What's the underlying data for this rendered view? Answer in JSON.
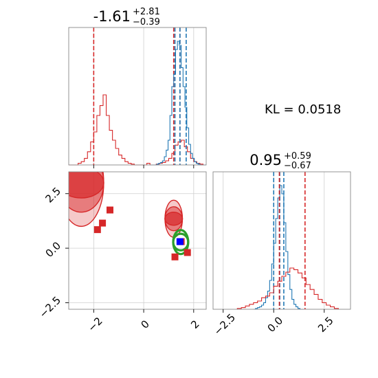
{
  "chart_data": [
    {
      "panel": "marginal-x",
      "type": "histogram",
      "title": "-1.61",
      "title_sup": "+2.81",
      "title_sub": "−0.39",
      "xlim": [
        -3.0,
        2.5
      ],
      "x_ticks": [
        -2,
        0,
        2
      ],
      "grid": true,
      "series": [
        {
          "color": "#d62728",
          "quantile_lines": [
            -2.0,
            1.2,
            1.45
          ],
          "bin_edges": [
            -3.0,
            -2.875,
            -2.75,
            -2.625,
            -2.5,
            -2.375,
            -2.25,
            -2.125,
            -2.0,
            -1.875,
            -1.75,
            -1.625,
            -1.5,
            -1.375,
            -1.25,
            -1.125,
            -1.0,
            -0.875,
            -0.75,
            -0.625,
            -0.5,
            -0.375,
            -0.25,
            -0.125,
            0.0,
            0.125,
            0.25,
            0.375,
            0.5,
            0.625,
            0.75,
            0.875,
            1.0,
            1.125,
            1.25,
            1.375,
            1.5,
            1.625,
            1.75,
            1.875,
            2.0,
            2.125,
            2.25,
            2.375,
            2.5
          ],
          "counts": [
            0,
            0,
            0,
            2,
            4,
            8,
            16,
            28,
            40,
            60,
            72,
            85,
            60,
            42,
            30,
            20,
            12,
            8,
            4,
            2,
            1,
            0,
            0,
            0,
            0,
            2,
            0,
            0,
            1,
            2,
            3,
            5,
            8,
            14,
            24,
            28,
            30,
            22,
            16,
            8,
            4,
            2,
            1,
            0,
            0
          ]
        },
        {
          "color": "#1f77b4",
          "quantile_lines": [
            1.25,
            1.45,
            1.7
          ],
          "bin_edges": [
            0.3,
            0.375,
            0.45,
            0.525,
            0.6,
            0.675,
            0.75,
            0.825,
            0.9,
            0.975,
            1.05,
            1.125,
            1.2,
            1.275,
            1.35,
            1.425,
            1.5,
            1.575,
            1.65,
            1.725,
            1.8,
            1.875,
            1.95,
            2.025,
            2.1,
            2.175,
            2.25,
            2.325,
            2.4,
            2.5
          ],
          "counts": [
            0,
            0,
            0,
            1,
            2,
            3,
            5,
            10,
            18,
            30,
            60,
            95,
            110,
            140,
            150,
            145,
            118,
            95,
            70,
            45,
            25,
            14,
            8,
            4,
            2,
            1,
            0,
            0,
            0
          ]
        }
      ]
    },
    {
      "panel": "marginal-y",
      "type": "histogram",
      "title": "0.95",
      "title_sup": "+0.59",
      "title_sub": "−0.67",
      "xlim": [
        -3.0,
        3.8
      ],
      "x_ticks": [
        -2.5,
        0.0,
        2.5
      ],
      "grid": true,
      "series": [
        {
          "color": "#1f77b4",
          "quantile_lines": [
            0.0,
            0.3,
            0.5
          ],
          "bin_edges": [
            -1.0,
            -0.9,
            -0.8,
            -0.7,
            -0.6,
            -0.5,
            -0.4,
            -0.3,
            -0.2,
            -0.1,
            0.0,
            0.1,
            0.2,
            0.3,
            0.4,
            0.5,
            0.6,
            0.7,
            0.8,
            0.9,
            1.0,
            1.1,
            1.2,
            1.3,
            1.4,
            1.5
          ],
          "counts": [
            0,
            1,
            2,
            3,
            5,
            8,
            14,
            22,
            35,
            55,
            80,
            110,
            135,
            150,
            140,
            105,
            70,
            42,
            24,
            12,
            6,
            3,
            1,
            0,
            0
          ]
        },
        {
          "color": "#d62728",
          "quantile_lines": [
            0.28,
            1.55
          ],
          "bin_edges": [
            -1.8,
            -1.6,
            -1.4,
            -1.2,
            -1.0,
            -0.8,
            -0.6,
            -0.4,
            -0.2,
            0.0,
            0.2,
            0.4,
            0.6,
            0.8,
            1.0,
            1.2,
            1.4,
            1.6,
            1.8,
            2.0,
            2.2,
            2.4,
            2.6,
            2.8,
            3.0,
            3.2
          ],
          "counts": [
            1,
            2,
            4,
            6,
            8,
            10,
            14,
            16,
            20,
            28,
            34,
            40,
            45,
            50,
            48,
            44,
            38,
            30,
            24,
            18,
            12,
            8,
            5,
            3,
            1
          ]
        }
      ]
    },
    {
      "panel": "joint",
      "type": "scatter",
      "xlim": [
        -3.0,
        2.5
      ],
      "ylim": [
        -2.8,
        3.5
      ],
      "x_ticks": [
        -2,
        0,
        2
      ],
      "y_ticks": [
        -2.5,
        0.0,
        2.5
      ],
      "grid": true,
      "series": [
        {
          "color": "#d62728",
          "points": [
            [
              -1.35,
              1.75
            ],
            [
              -1.65,
              1.15
            ],
            [
              -1.85,
              0.85
            ],
            [
              1.25,
              -0.4
            ],
            [
              1.75,
              -0.2
            ],
            [
              1.5,
              0.3
            ]
          ]
        },
        {
          "color": "#0000ff",
          "points": [
            [
              1.45,
              0.3
            ]
          ]
        }
      ],
      "contours": [
        {
          "color": "#d62728",
          "levels": [
            [
              -2.5,
              3.0,
              0.9,
              2.0
            ],
            [
              -2.5,
              3.0,
              0.9,
              1.35
            ],
            [
              -2.5,
              3.0,
              0.9,
              0.7
            ]
          ]
        },
        {
          "color": "#d62728",
          "levels": [
            [
              1.2,
              1.35,
              0.35,
              0.85
            ],
            [
              1.2,
              1.35,
              0.35,
              0.55
            ],
            [
              1.2,
              1.35,
              0.35,
              0.3
            ]
          ]
        },
        {
          "color": "#2ca02c",
          "levels": [
            [
              1.48,
              0.28,
              0.3,
              0.55
            ],
            [
              1.48,
              0.28,
              0.3,
              0.38
            ]
          ]
        }
      ]
    }
  ],
  "annotation": {
    "kl_text": "KL = 0.0518"
  }
}
